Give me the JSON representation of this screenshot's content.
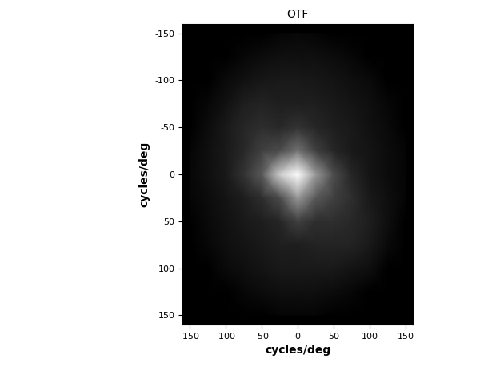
{
  "chart_data": {
    "type": "heatmap",
    "title": "OTF",
    "x_label": "cycles/deg",
    "y_label": "cycles/deg",
    "color": "gray",
    "x": [
      -150,
      -125,
      -100,
      -75,
      -50,
      -25,
      0,
      25,
      50,
      75,
      100,
      125,
      150
    ],
    "y": [
      -150,
      -125,
      -100,
      -75,
      -50,
      -25,
      0,
      25,
      50,
      75,
      100,
      125,
      150
    ],
    "cells": [
      [
        0,
        0,
        0,
        0,
        0,
        0.02,
        0.03,
        0.02,
        0,
        0,
        0,
        0,
        0
      ],
      [
        0,
        0,
        0,
        0.03,
        0.05,
        0.06,
        0.06,
        0.06,
        0.05,
        0.03,
        0,
        0,
        0
      ],
      [
        0,
        0,
        0.04,
        0.07,
        0.09,
        0.1,
        0.1,
        0.09,
        0.08,
        0.06,
        0.04,
        0,
        0
      ],
      [
        0,
        0.03,
        0.07,
        0.12,
        0.14,
        0.12,
        0.12,
        0.12,
        0.1,
        0.08,
        0.06,
        0.03,
        0
      ],
      [
        0,
        0.05,
        0.1,
        0.15,
        0.18,
        0.16,
        0.2,
        0.15,
        0.12,
        0.1,
        0.07,
        0.04,
        0
      ],
      [
        0.02,
        0.06,
        0.1,
        0.16,
        0.25,
        0.3,
        0.45,
        0.25,
        0.15,
        0.1,
        0.08,
        0.05,
        0.02
      ],
      [
        0.03,
        0.06,
        0.1,
        0.2,
        0.35,
        0.8,
        1.0,
        0.6,
        0.3,
        0.15,
        0.08,
        0.05,
        0.02
      ],
      [
        0.02,
        0.05,
        0.08,
        0.12,
        0.18,
        0.3,
        0.6,
        0.35,
        0.25,
        0.18,
        0.1,
        0.06,
        0.02
      ],
      [
        0,
        0.04,
        0.07,
        0.1,
        0.12,
        0.15,
        0.25,
        0.18,
        0.18,
        0.16,
        0.12,
        0.06,
        0
      ],
      [
        0,
        0.03,
        0.06,
        0.08,
        0.1,
        0.12,
        0.12,
        0.14,
        0.14,
        0.14,
        0.1,
        0.04,
        0
      ],
      [
        0,
        0,
        0.04,
        0.06,
        0.08,
        0.1,
        0.1,
        0.1,
        0.1,
        0.08,
        0.06,
        0,
        0
      ],
      [
        0,
        0,
        0,
        0.03,
        0.05,
        0.06,
        0.06,
        0.06,
        0.05,
        0.03,
        0,
        0,
        0
      ],
      [
        0,
        0,
        0,
        0,
        0,
        0.02,
        0.02,
        0.02,
        0,
        0,
        0,
        0,
        0
      ]
    ],
    "xlim": [
      -160,
      160
    ],
    "ylim": [
      160,
      -160
    ],
    "xticks": [
      -150,
      -100,
      -50,
      0,
      50,
      100,
      150
    ],
    "yticks": [
      -150,
      -100,
      -50,
      0,
      50,
      100,
      150
    ],
    "grid": false
  }
}
